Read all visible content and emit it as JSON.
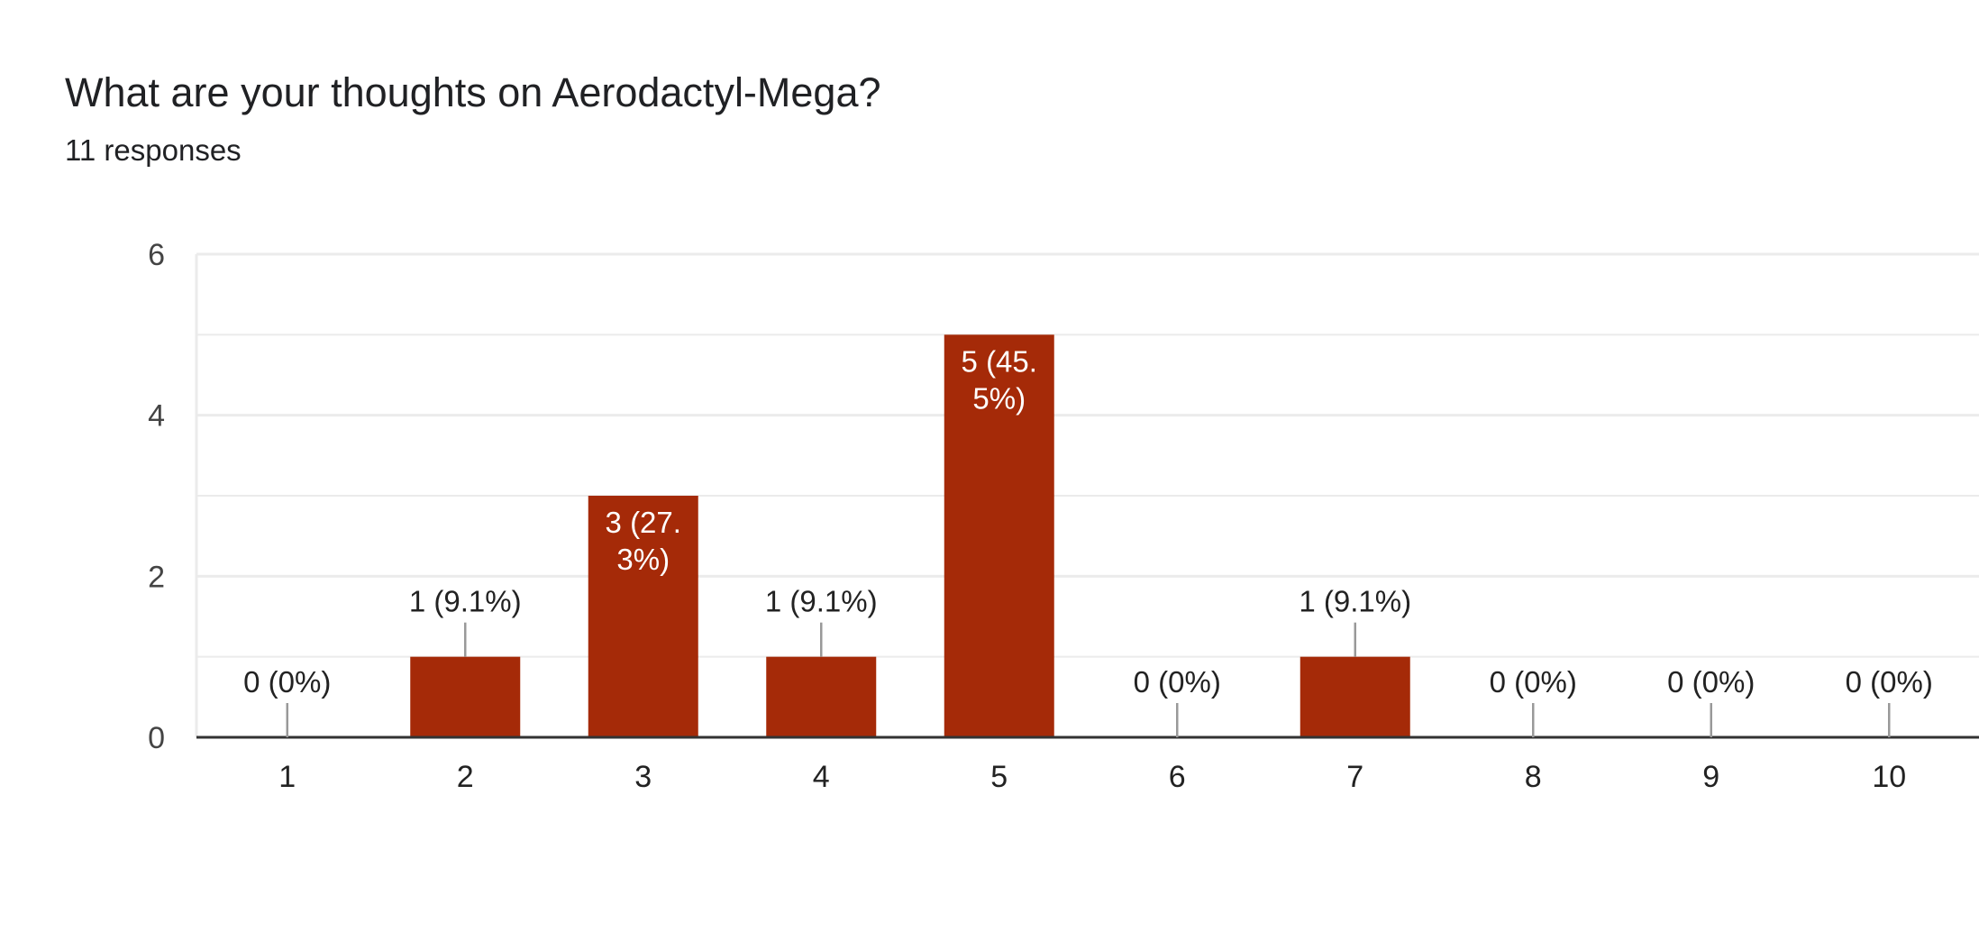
{
  "header": {
    "title": "What are your thoughts on Aerodactyl-Mega?",
    "subtitle": "11 responses"
  },
  "colors": {
    "bar": "#a52a08",
    "grid": "#ebebeb",
    "axis": "#333333",
    "leader": "#999999"
  },
  "chart_data": {
    "type": "bar",
    "title": "What are your thoughts on Aerodactyl-Mega?",
    "categories": [
      "1",
      "2",
      "3",
      "4",
      "5",
      "6",
      "7",
      "8",
      "9",
      "10"
    ],
    "values": [
      0,
      1,
      3,
      1,
      5,
      0,
      1,
      0,
      0,
      0
    ],
    "data_labels": [
      [
        "0 (0%)"
      ],
      [
        "1 (9.1%)"
      ],
      [
        "3 (27.",
        "3%)"
      ],
      [
        "1 (9.1%)"
      ],
      [
        "5 (45.",
        "5%)"
      ],
      [
        "0 (0%)"
      ],
      [
        "1 (9.1%)"
      ],
      [
        "0 (0%)"
      ],
      [
        "0 (0%)"
      ],
      [
        "0 (0%)"
      ]
    ],
    "ylim": [
      0,
      6
    ],
    "yticks": [
      "0",
      "2",
      "4",
      "6"
    ],
    "xlabel": "",
    "ylabel": "",
    "grid": true,
    "legend": "none"
  }
}
